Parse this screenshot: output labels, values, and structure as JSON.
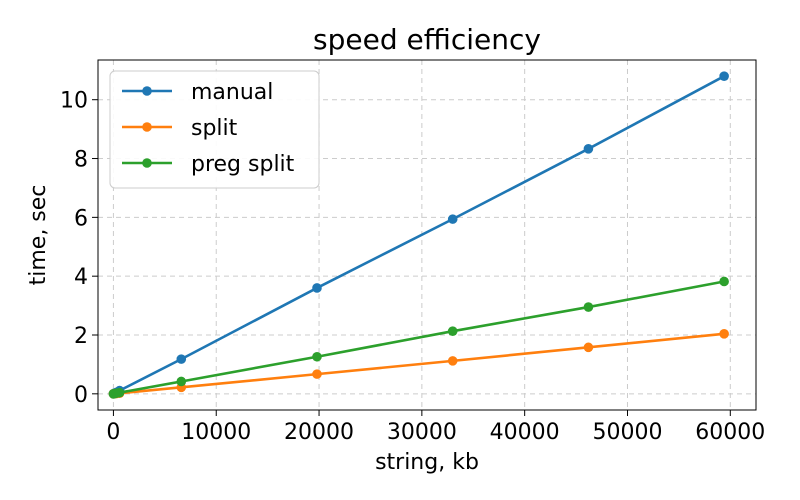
{
  "chart_data": {
    "type": "line",
    "title": "speed efficiency",
    "xlabel": "string, kb",
    "ylabel": "time, sec",
    "xlim": [
      -1500,
      62500
    ],
    "ylim": [
      -0.55,
      11.35
    ],
    "xticks": [
      0,
      10000,
      20000,
      30000,
      40000,
      50000,
      60000
    ],
    "yticks": [
      0,
      2,
      4,
      6,
      8,
      10
    ],
    "xtick_labels": [
      "0",
      "10000",
      "20000",
      "30000",
      "40000",
      "50000",
      "60000"
    ],
    "ytick_labels": [
      "0",
      "2",
      "4",
      "6",
      "8",
      "10"
    ],
    "grid": true,
    "legend_position": "top-left",
    "x": [
      0,
      100,
      300,
      600,
      6600,
      19800,
      33000,
      46200,
      59400
    ],
    "series": [
      {
        "name": "manual",
        "color": "#1f77b4",
        "values": [
          0.0,
          0.02,
          0.05,
          0.11,
          1.18,
          3.6,
          5.94,
          8.33,
          10.8
        ]
      },
      {
        "name": "split",
        "color": "#ff7f0e",
        "values": [
          0.0,
          0.003,
          0.01,
          0.02,
          0.22,
          0.67,
          1.12,
          1.58,
          2.04
        ]
      },
      {
        "name": "preg split",
        "color": "#2ca02c",
        "values": [
          0.0,
          0.006,
          0.02,
          0.04,
          0.42,
          1.26,
          2.13,
          2.95,
          3.82
        ]
      }
    ]
  }
}
